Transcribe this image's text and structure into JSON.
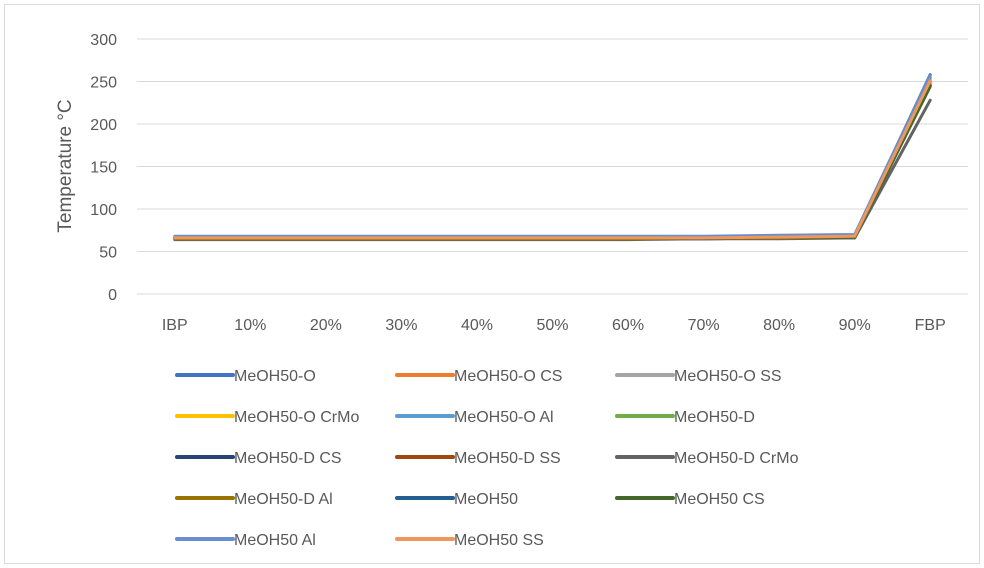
{
  "chart_data": {
    "type": "line",
    "title": "",
    "xlabel": "",
    "ylabel": "Temperature °C",
    "categories": [
      "IBP",
      "10%",
      "20%",
      "30%",
      "40%",
      "50%",
      "60%",
      "70%",
      "80%",
      "90%",
      "FBP"
    ],
    "ylim": [
      0,
      300
    ],
    "yticks": [
      0,
      50,
      100,
      150,
      200,
      250,
      300
    ],
    "grid": true,
    "legend_position": "bottom",
    "series": [
      {
        "name": "MeOH50-O",
        "color": "#4472C4",
        "values": [
          66,
          66,
          66,
          66,
          66,
          66,
          66,
          66,
          67,
          68,
          250
        ]
      },
      {
        "name": "MeOH50-O CS",
        "color": "#ED7D31",
        "values": [
          65,
          65,
          65,
          65,
          65,
          65,
          65,
          65,
          66,
          67,
          247
        ]
      },
      {
        "name": "MeOH50-O SS",
        "color": "#A5A5A5",
        "values": [
          66,
          66,
          66,
          66,
          66,
          66,
          66,
          67,
          67,
          68,
          252
        ]
      },
      {
        "name": "MeOH50-O CrMo",
        "color": "#FFC000",
        "values": [
          66,
          66,
          66,
          66,
          66,
          66,
          66,
          66,
          67,
          68,
          249
        ]
      },
      {
        "name": "MeOH50-O Al",
        "color": "#5B9BD5",
        "values": [
          67,
          67,
          67,
          67,
          67,
          67,
          67,
          67,
          68,
          69,
          255
        ]
      },
      {
        "name": "MeOH50-D",
        "color": "#70AD47",
        "values": [
          66,
          66,
          66,
          66,
          66,
          66,
          66,
          66,
          67,
          68,
          253
        ]
      },
      {
        "name": "MeOH50-D CS",
        "color": "#264478",
        "values": [
          65,
          65,
          65,
          65,
          65,
          65,
          65,
          65,
          66,
          66,
          245
        ]
      },
      {
        "name": "MeOH50-D SS",
        "color": "#9E480E",
        "values": [
          65,
          65,
          65,
          65,
          65,
          65,
          65,
          65,
          66,
          67,
          246
        ]
      },
      {
        "name": "MeOH50-D CrMo",
        "color": "#636363",
        "values": [
          64,
          64,
          64,
          64,
          64,
          64,
          64,
          65,
          65,
          66,
          228
        ]
      },
      {
        "name": "MeOH50-D Al",
        "color": "#997300",
        "values": [
          65,
          65,
          65,
          65,
          65,
          65,
          65,
          66,
          66,
          67,
          250
        ]
      },
      {
        "name": "MeOH50",
        "color": "#255E91",
        "values": [
          67,
          67,
          67,
          67,
          67,
          67,
          67,
          67,
          68,
          69,
          258
        ]
      },
      {
        "name": "MeOH50 CS",
        "color": "#43682B",
        "values": [
          66,
          66,
          66,
          66,
          66,
          66,
          66,
          66,
          67,
          67,
          244
        ]
      },
      {
        "name": "MeOH50 Al",
        "color": "#698ED0",
        "values": [
          68,
          68,
          68,
          68,
          68,
          68,
          68,
          68,
          69,
          70,
          257
        ]
      },
      {
        "name": "MeOH50 SS",
        "color": "#F1975A",
        "values": [
          66,
          66,
          66,
          66,
          66,
          66,
          66,
          66,
          67,
          68,
          251
        ]
      }
    ]
  }
}
